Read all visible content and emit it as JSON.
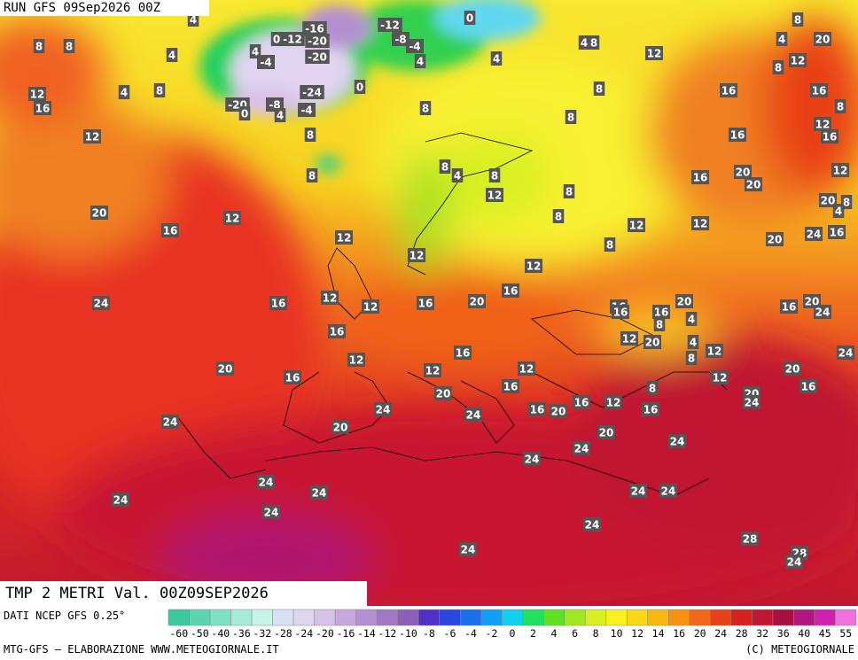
{
  "header": {
    "run": "RUN GFS 09Sep2026 00Z"
  },
  "map": {
    "title": "TMP 2 METRI Val. 00Z09SEP2026",
    "labels": [
      4,
      -16,
      -12,
      0,
      -20,
      -12,
      -8,
      -4,
      0,
      8,
      8,
      4,
      4,
      -4,
      -20,
      4,
      4,
      4,
      8,
      12,
      8,
      4,
      20,
      8,
      12,
      12,
      4,
      8,
      16,
      12,
      -24,
      0,
      -20,
      -8,
      0,
      4,
      -4,
      8,
      8,
      16,
      16,
      8,
      8,
      16,
      12,
      16,
      8,
      8,
      8,
      4,
      8,
      12,
      8,
      8,
      12,
      12,
      16,
      20,
      20,
      12,
      20,
      8,
      4,
      20,
      12,
      16,
      12,
      12,
      8,
      12,
      20,
      24,
      16,
      24,
      16,
      12,
      12,
      16,
      20,
      16,
      16,
      16,
      16,
      20,
      16,
      20,
      24,
      16,
      12,
      16,
      12,
      12,
      20,
      8,
      4,
      4,
      8,
      12,
      24,
      20,
      16,
      12,
      20,
      16,
      8,
      12,
      20,
      16,
      20,
      24,
      24,
      24,
      16,
      20,
      16,
      12,
      16,
      24,
      20,
      20,
      24,
      24,
      24,
      24,
      24,
      24,
      24,
      24,
      24,
      24,
      28,
      24,
      28,
      24
    ]
  },
  "footer": {
    "source": "DATI NCEP GFS 0.25°",
    "credit": "MTG-GFS — ELABORAZIONE WWW.METEOGIORNALE.IT",
    "copyright": "(C) METEOGIORNALE"
  },
  "legend": {
    "ticks": [
      -60,
      -50,
      -40,
      -36,
      -32,
      -28,
      -24,
      -20,
      -16,
      -14,
      -12,
      -10,
      -8,
      -6,
      -4,
      -2,
      0,
      2,
      4,
      6,
      8,
      10,
      12,
      14,
      16,
      20,
      24,
      28,
      32,
      36,
      40,
      45,
      55
    ],
    "colors": [
      "#3cc8a0",
      "#5cd4b0",
      "#80e0c4",
      "#a4ecd8",
      "#c8f4e8",
      "#d8e0f4",
      "#e0d4f0",
      "#d8c0e8",
      "#c8a8dc",
      "#b490d0",
      "#a078c4",
      "#8c60b8",
      "#5030c8",
      "#2848e0",
      "#1870f0",
      "#10a0f8",
      "#10d0f0",
      "#20e060",
      "#60e020",
      "#a0e820",
      "#d8f020",
      "#f8f020",
      "#f8d818",
      "#f8b810",
      "#f89010",
      "#f06818",
      "#e84018",
      "#d82020",
      "#c01830",
      "#a81040",
      "#b01880",
      "#d020b0",
      "#f070e0"
    ]
  }
}
